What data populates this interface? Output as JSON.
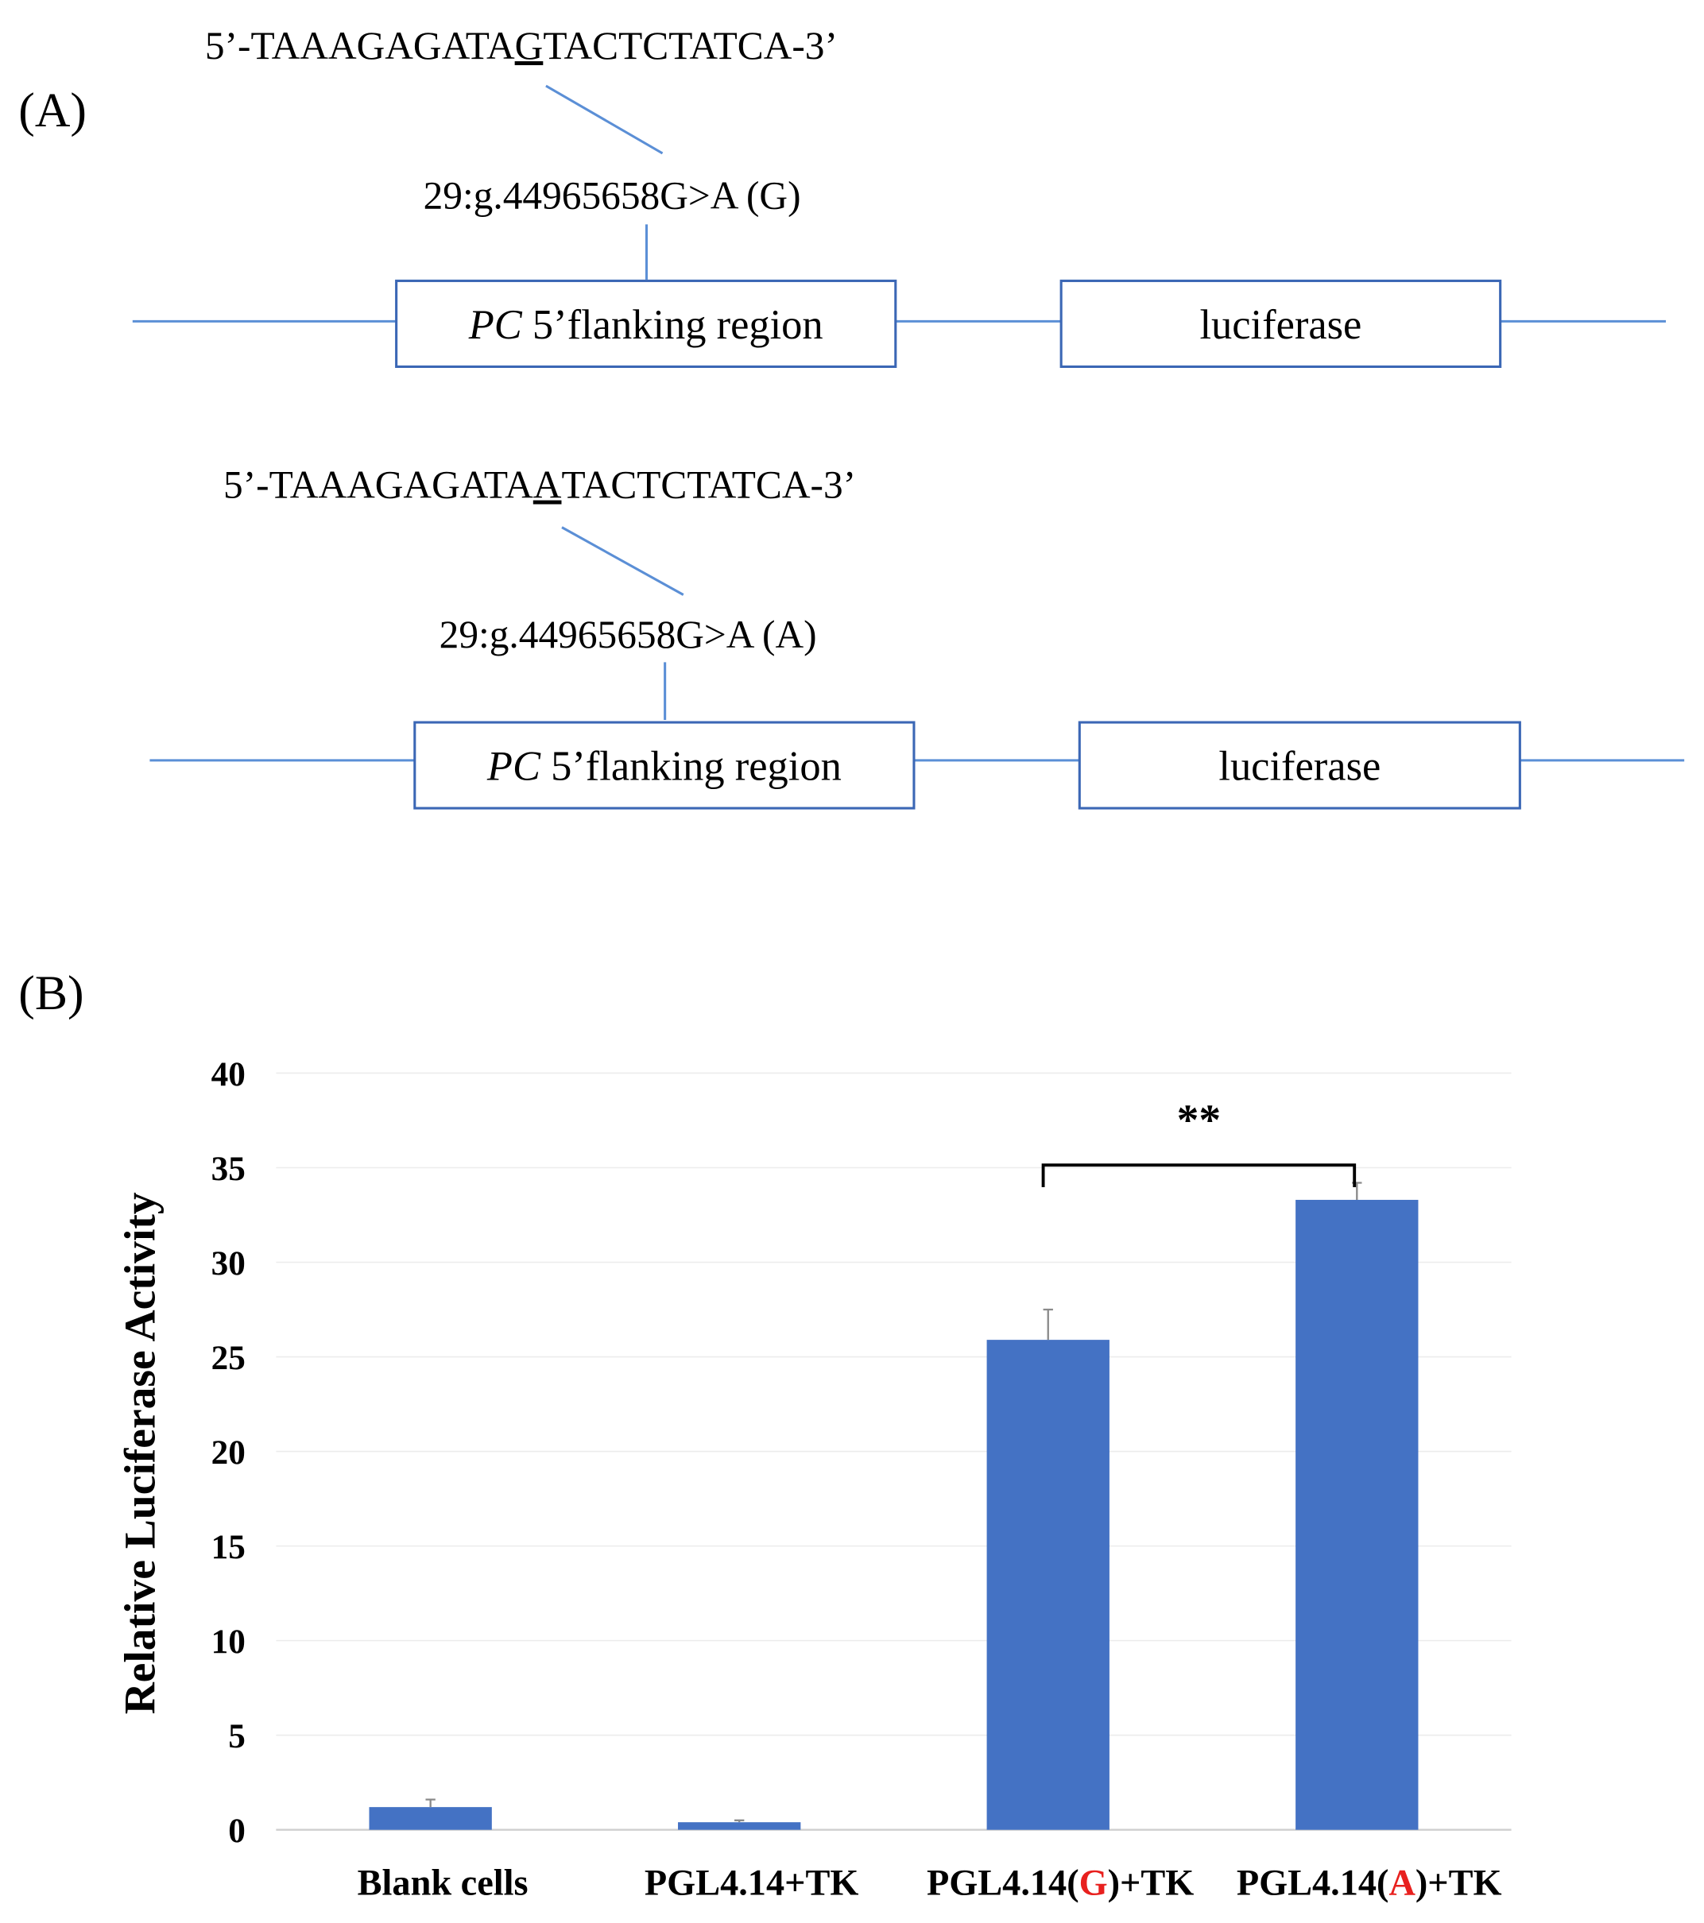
{
  "panel_a": {
    "label": "(A)",
    "constructs": [
      {
        "sequence": {
          "prefix": "5’-TAAAGAGATA",
          "variant": "G",
          "suffix": "TACTCTATCA-3’"
        },
        "snp": "29:g.44965658G>A (G)",
        "gene": "PC",
        "region": "5’flanking region",
        "reporter": "luciferase"
      },
      {
        "sequence": {
          "prefix": "5’-TAAAGAGATA",
          "variant": "A",
          "suffix": "TACTCTATCA-3’"
        },
        "snp": "29:g.44965658G>A (A)",
        "gene": "PC",
        "region": "5’flanking region",
        "reporter": "luciferase"
      }
    ]
  },
  "chart_data": {
    "type": "bar",
    "panel_label": "(B)",
    "y_label": "Relative Luciferase Activity",
    "categories": [
      "Blank cells",
      "PGL4.14+TK",
      "PGL4.14(G)+TK",
      "PGL4.14(A)+TK"
    ],
    "values": [
      1.2,
      0.4,
      25.9,
      33.3
    ],
    "errors": [
      0.4,
      0.1,
      1.6,
      0.9
    ],
    "color": "#4472c4",
    "highlight_color": "#e8201e",
    "ylim": [
      0,
      40
    ],
    "yticks": [
      0,
      5,
      10,
      15,
      20,
      25,
      30,
      35,
      40
    ],
    "grid": true,
    "annotation": {
      "text": "**",
      "from": 2,
      "to": 3
    }
  }
}
